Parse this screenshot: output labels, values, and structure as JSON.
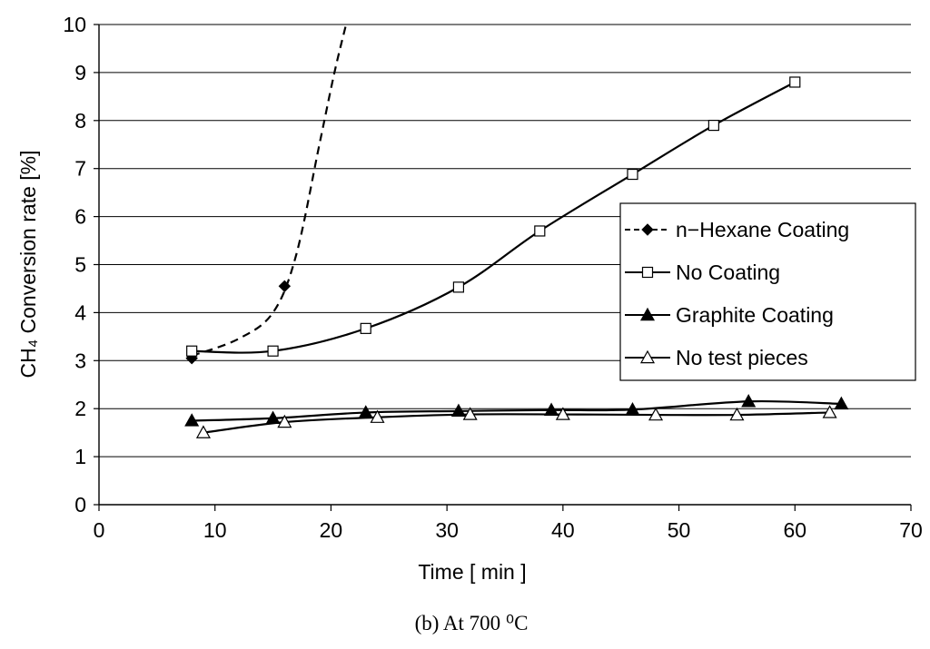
{
  "chart_data": {
    "type": "line",
    "xlabel": "Time [ min ]",
    "ylabel": "CH₄ Conversion rate [%]",
    "xlim": [
      0,
      70
    ],
    "ylim": [
      0,
      10
    ],
    "xticks": [
      "0",
      "10",
      "20",
      "30",
      "40",
      "50",
      "60",
      "70"
    ],
    "yticks": [
      "0",
      "1",
      "2",
      "3",
      "4",
      "5",
      "6",
      "7",
      "8",
      "9",
      "10"
    ],
    "grid": "horizontal",
    "legend_position": "right",
    "caption": "(b) At 700 ⁰C",
    "series": [
      {
        "name": "n−Hexane Coating",
        "marker": "diamond-filled",
        "line": "dashed",
        "x": [
          8,
          16
        ],
        "y": [
          3.05,
          4.55
        ],
        "trend_curve": [
          [
            8,
            3.1
          ],
          [
            12,
            3.45
          ],
          [
            15,
            4.0
          ],
          [
            17,
            5.2
          ],
          [
            19,
            7.5
          ],
          [
            20.3,
            9.0
          ],
          [
            21.3,
            10.0
          ]
        ]
      },
      {
        "name": "No Coating",
        "marker": "square-open",
        "line": "solid",
        "x": [
          8,
          15,
          23,
          31,
          38,
          46,
          53,
          60
        ],
        "y": [
          3.2,
          3.2,
          3.67,
          4.53,
          5.7,
          6.88,
          7.9,
          8.8
        ]
      },
      {
        "name": "Graphite Coating",
        "marker": "triangle-filled",
        "line": "solid",
        "x": [
          8,
          15,
          23,
          31,
          39,
          46,
          56,
          64
        ],
        "y": [
          1.75,
          1.8,
          1.92,
          1.95,
          1.97,
          1.98,
          2.15,
          2.1
        ]
      },
      {
        "name": "No test pieces",
        "marker": "triangle-open",
        "line": "solid",
        "x": [
          9,
          16,
          24,
          32,
          40,
          48,
          55,
          63
        ],
        "y": [
          1.5,
          1.72,
          1.82,
          1.88,
          1.88,
          1.87,
          1.87,
          1.92
        ]
      }
    ]
  }
}
